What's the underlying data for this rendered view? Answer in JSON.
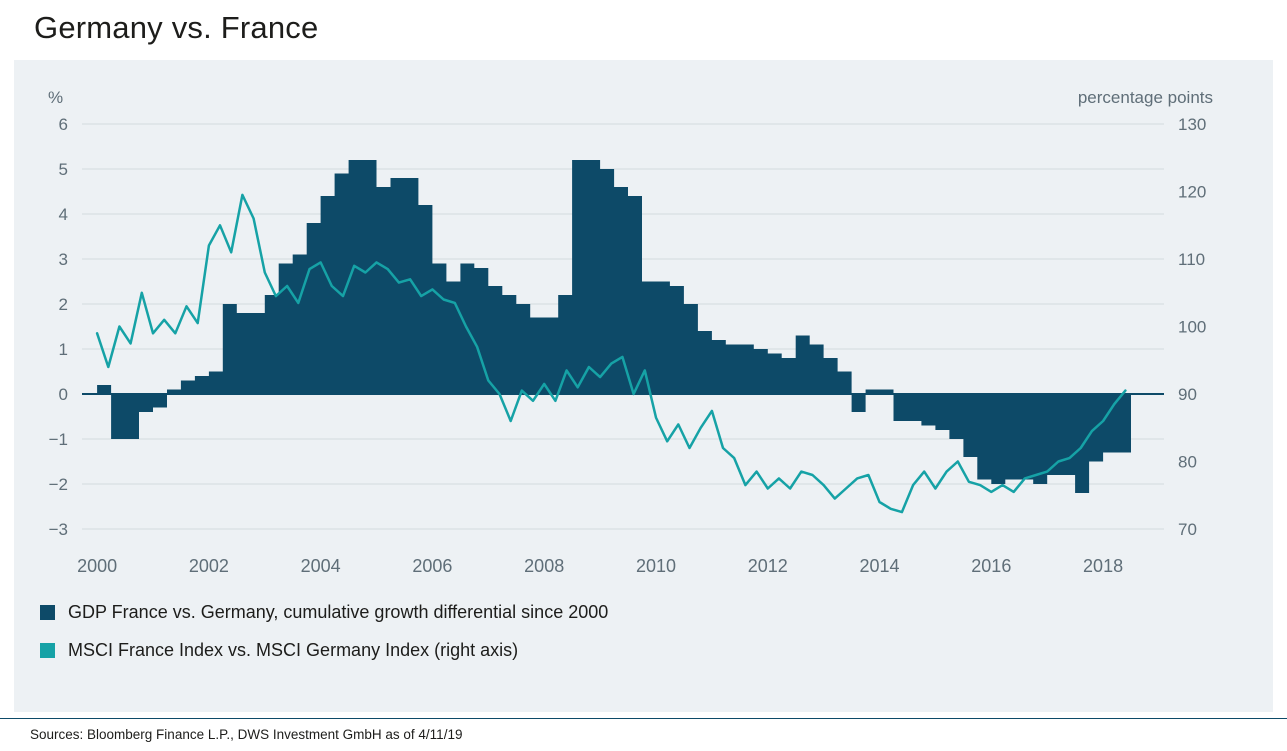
{
  "page": {
    "title": "Germany vs. France",
    "source": "Sources: Bloomberg Finance L.P., DWS Investment GmbH as of 4/11/19"
  },
  "chart_data": {
    "type": "combo",
    "title": "Germany vs. France",
    "grid": true,
    "grid_color": "#d3dade",
    "tick_color": "#5f6e78",
    "zero_line_color": "#0d4a68",
    "left_axis": {
      "label": "%",
      "min": -3,
      "max": 6,
      "ticks": [
        6,
        5,
        4,
        3,
        2,
        1,
        0,
        -1,
        -2,
        -3
      ],
      "tick_labels": [
        "6",
        "5",
        "4",
        "3",
        "2",
        "1",
        "0",
        "−1",
        "−2",
        "−3"
      ]
    },
    "right_axis": {
      "label": "percentage points",
      "min": 70,
      "max": 130,
      "ticks": [
        130,
        120,
        110,
        100,
        90,
        80,
        70
      ],
      "tick_labels": [
        "130",
        "120",
        "110",
        "100",
        "90",
        "80",
        "70"
      ]
    },
    "x_axis": {
      "min": 1999.73,
      "max": 2019.09,
      "ticks": [
        2000,
        2002,
        2004,
        2006,
        2008,
        2010,
        2012,
        2014,
        2016,
        2018
      ],
      "tick_labels": [
        "2000",
        "2002",
        "2004",
        "2006",
        "2008",
        "2010",
        "2012",
        "2014",
        "2016",
        "2018"
      ]
    },
    "series": [
      {
        "name": "GDP France vs. Germany, cumulative growth differential since 2000",
        "type": "step-area",
        "axis": "left",
        "color": "#0d4a68",
        "x_start": 2000.0,
        "x_step": 0.25,
        "values": [
          0.2,
          -1.0,
          -1.0,
          -0.4,
          -0.3,
          0.1,
          0.3,
          0.4,
          0.5,
          2.0,
          1.8,
          1.8,
          2.2,
          2.9,
          3.1,
          3.8,
          4.4,
          4.9,
          5.2,
          5.2,
          4.6,
          4.8,
          4.8,
          4.2,
          2.9,
          2.5,
          2.9,
          2.8,
          2.4,
          2.2,
          2.0,
          1.7,
          1.7,
          2.2,
          5.2,
          5.2,
          5.0,
          4.6,
          4.4,
          2.5,
          2.5,
          2.4,
          2.0,
          1.4,
          1.2,
          1.1,
          1.1,
          1.0,
          0.9,
          0.8,
          1.3,
          1.1,
          0.8,
          0.5,
          -0.4,
          0.1,
          0.1,
          -0.6,
          -0.6,
          -0.7,
          -0.8,
          -1.0,
          -1.4,
          -1.9,
          -2.0,
          -1.9,
          -1.9,
          -2.0,
          -1.8,
          -1.8,
          -2.2,
          -1.5,
          -1.3,
          -1.3
        ]
      },
      {
        "name": "MSCI France Index vs. MSCI Germany Index (right axis)",
        "type": "line",
        "axis": "right",
        "color": "#16a2a6",
        "x_start": 2000.0,
        "x_step": 0.2,
        "values": [
          99,
          94,
          100,
          97.5,
          105,
          99,
          101,
          99,
          103,
          100.5,
          112,
          115,
          111,
          119.5,
          116,
          108,
          104.5,
          106,
          103.5,
          108.5,
          109.5,
          106,
          104.5,
          109,
          108,
          109.5,
          108.5,
          106.5,
          107,
          104.5,
          105.5,
          104,
          103.5,
          100,
          97,
          92,
          90,
          86,
          90.5,
          89,
          91.5,
          89,
          93.5,
          91,
          94,
          92.5,
          94.5,
          95.5,
          90,
          93.5,
          86.5,
          83,
          85.5,
          82,
          85,
          87.5,
          82,
          80.5,
          76.5,
          78.5,
          76,
          77.5,
          76,
          78.5,
          78,
          76.5,
          74.5,
          76,
          77.5,
          78,
          74,
          73,
          72.5,
          76.5,
          78.5,
          76,
          78.5,
          80,
          77,
          76.5,
          75.5,
          76.5,
          75.5,
          77.5,
          78,
          78.5,
          80,
          80.5,
          82,
          84.5,
          86,
          88.5,
          90.5
        ]
      }
    ],
    "legend": [
      {
        "label": "GDP France vs. Germany, cumulative growth differential since 2000",
        "color": "#0d4a68"
      },
      {
        "label": "MSCI France Index vs. MSCI Germany Index (right axis)",
        "color": "#16a2a6"
      }
    ],
    "legend_position": "bottom-left"
  }
}
